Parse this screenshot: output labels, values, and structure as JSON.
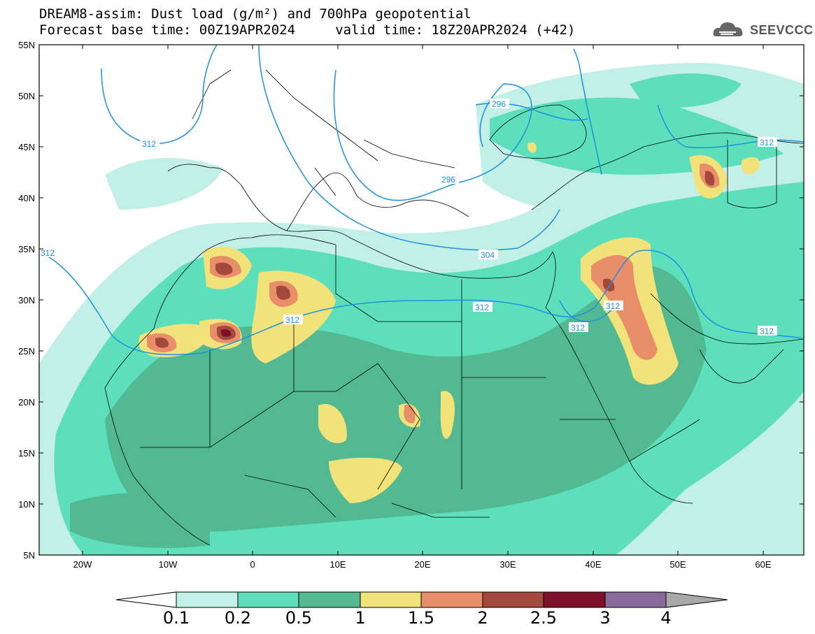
{
  "title_line1": "DREAM8-assim: Dust load (g/m²) and 700hPa geopotential",
  "title_line2": "Forecast base time: 00Z19APR2024     valid time: 18Z20APR2024 (+42)",
  "logo_text": "SEEVCCC",
  "lat_labels": [
    "55N",
    "50N",
    "45N",
    "40N",
    "35N",
    "30N",
    "25N",
    "20N",
    "15N",
    "10N",
    "5N"
  ],
  "lon_labels": [
    "20W",
    "10W",
    "0",
    "10E",
    "20E",
    "30E",
    "40E",
    "50E",
    "60E"
  ],
  "contour_labels": [
    "312",
    "296",
    "312",
    "296",
    "304",
    "312",
    "312",
    "312",
    "312",
    "312",
    "312",
    "312"
  ],
  "colorbar": {
    "labels": [
      "0.1",
      "0.2",
      "0.5",
      "1",
      "1.5",
      "2",
      "2.5",
      "3",
      "4"
    ],
    "colors": [
      "#c2efe6",
      "#5ddfbb",
      "#52b992",
      "#f2e27a",
      "#e88f6a",
      "#a3483d",
      "#7d0f2a",
      "#8a6a9b",
      "#a8a8a8"
    ]
  },
  "colors": {
    "low": "#c2efe6",
    "mid": "#5ddfbb",
    "mid2": "#52b992",
    "yellow": "#f2e27a",
    "orange": "#e88f6a",
    "brown": "#a3483d",
    "maroon": "#7d0f2a",
    "contour": "#1e90e0"
  }
}
